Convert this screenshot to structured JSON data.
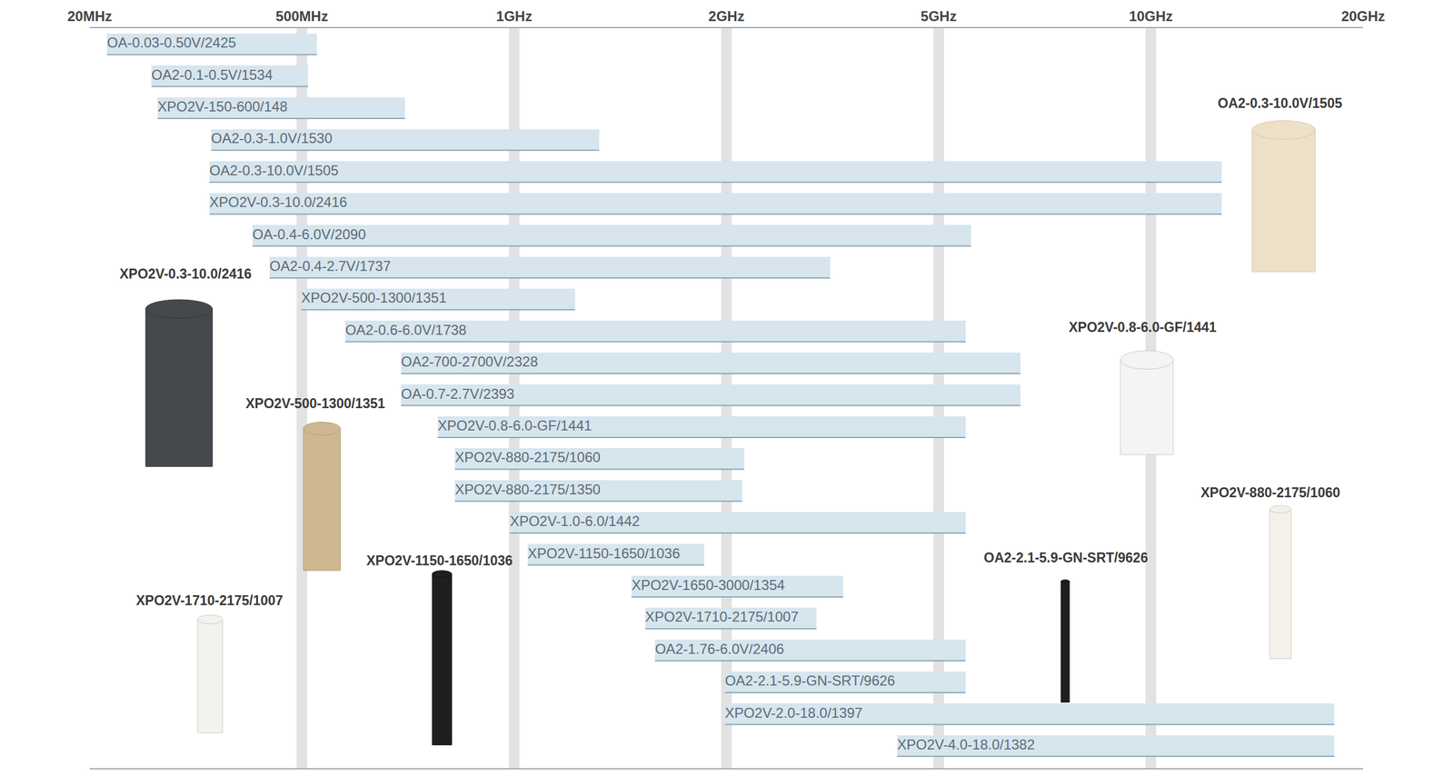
{
  "chart_data": {
    "type": "bar",
    "orientation": "horizontal",
    "categories": [
      "OA-0.03-0.50V/2425",
      "OA2-0.1-0.5V/1534",
      "XPO2V-150-600/148",
      "OA2-0.3-1.0V/1530",
      "OA2-0.3-10.0V/1505",
      "XPO2V-0.3-10.0/2416",
      "OA-0.4-6.0V/2090",
      "OA2-0.4-2.7V/1737",
      "XPO2V-500-1300/1351",
      "OA2-0.6-6.0V/1738",
      "OA2-700-2700V/2328",
      "OA-0.7-2.7V/2393",
      "XPO2V-0.8-6.0-GF/1441",
      "XPO2V-880-2175/1060",
      "XPO2V-880-2175/1350",
      "XPO2V-1.0-6.0/1442",
      "XPO2V-1150-1650/1036",
      "XPO2V-1650-3000/1354",
      "XPO2V-1710-2175/1007",
      "OA2-1.76-6.0V/2406",
      "OA2-2.1-5.9-GN-SRT/9626",
      "XPO2V-2.0-18.0/1397",
      "XPO2V-4.0-18.0/1382"
    ],
    "values": [
      [
        26,
        525
      ],
      [
        51,
        510
      ],
      [
        56,
        700
      ],
      [
        126,
        1320
      ],
      [
        123,
        12600
      ],
      [
        123,
        12600
      ],
      [
        236,
        5560
      ],
      [
        306,
        3130
      ],
      [
        494,
        1220
      ],
      [
        576,
        5460
      ],
      [
        691,
        6530
      ],
      [
        691,
        6530
      ],
      [
        779,
        5460
      ],
      [
        824,
        2160
      ],
      [
        824,
        2140
      ],
      [
        986,
        5460
      ],
      [
        1045,
        1860
      ],
      [
        1467,
        3310
      ],
      [
        1534,
        2950
      ],
      [
        1584,
        5460
      ],
      [
        1990,
        5460
      ],
      [
        1990,
        18200
      ],
      [
        4180,
        18200
      ]
    ],
    "color": "#d6e5ee",
    "xlim": [
      20,
      20000
    ],
    "xticks": [
      {
        "value": 20,
        "label": "20MHz"
      },
      {
        "value": 500,
        "label": "500MHz"
      },
      {
        "value": 1000,
        "label": "1GHz"
      },
      {
        "value": 2000,
        "label": "2GHz"
      },
      {
        "value": 5000,
        "label": "5GHz"
      },
      {
        "value": 10000,
        "label": "10GHz"
      },
      {
        "value": 20000,
        "label": "20GHz"
      }
    ],
    "grid": true,
    "tick_labels": "x",
    "annotations": [
      "OA2-0.3-10.0V/1505",
      "XPO2V-0.3-10.0/2416",
      "XPO2V-500-1300/1351",
      "XPO2V-0.8-6.0-GF/1441",
      "XPO2V-880-2175/1060",
      "XPO2V-1150-1650/1036",
      "OA2-2.1-5.9-GN-SRT/9626",
      "XPO2V-1710-2175/1007"
    ]
  }
}
